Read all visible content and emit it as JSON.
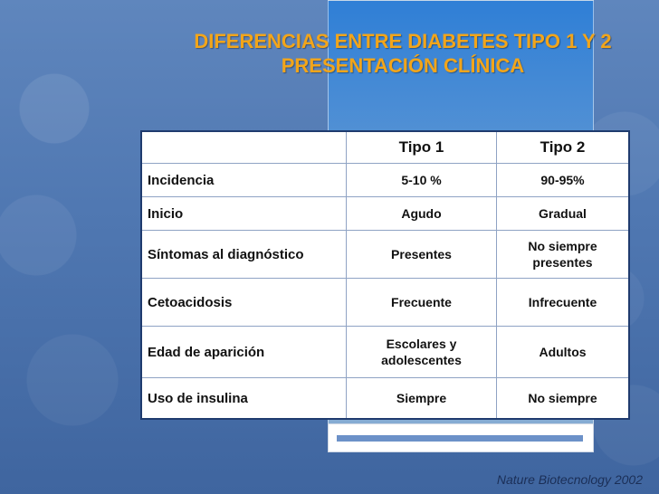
{
  "slide": {
    "title_line1": "DIFERENCIAS ENTRE DIABETES TIPO 1 Y 2",
    "title_line2": "PRESENTACIÓN CLÍNICA",
    "citation": "Nature Biotecnology 2002",
    "colors": {
      "title": "#f2a51a",
      "background": "#4f77b1",
      "panel": "#2f7fd6",
      "table_border": "#1f3b6e"
    }
  },
  "table": {
    "headers": [
      "",
      "Tipo 1",
      "Tipo 2"
    ],
    "rows": [
      {
        "label": "Incidencia",
        "tipo1": [
          "5-10 %"
        ],
        "tipo2": [
          "90-95%"
        ]
      },
      {
        "label": "Inicio",
        "tipo1": [
          "Agudo"
        ],
        "tipo2": [
          "Gradual"
        ]
      },
      {
        "label": "Síntomas al diagnóstico",
        "tipo1": [
          "Presentes"
        ],
        "tipo2": [
          "No siempre",
          "presentes"
        ]
      },
      {
        "label": "Cetoacidosis",
        "tipo1": [
          "Frecuente"
        ],
        "tipo2": [
          "Infrecuente"
        ]
      },
      {
        "label": "Edad de aparición",
        "tipo1": [
          "Escolares y",
          "adolescentes"
        ],
        "tipo2": [
          "Adultos"
        ]
      },
      {
        "label": "Uso de insulina",
        "tipo1": [
          "Siempre"
        ],
        "tipo2": [
          "No siempre"
        ]
      }
    ]
  }
}
